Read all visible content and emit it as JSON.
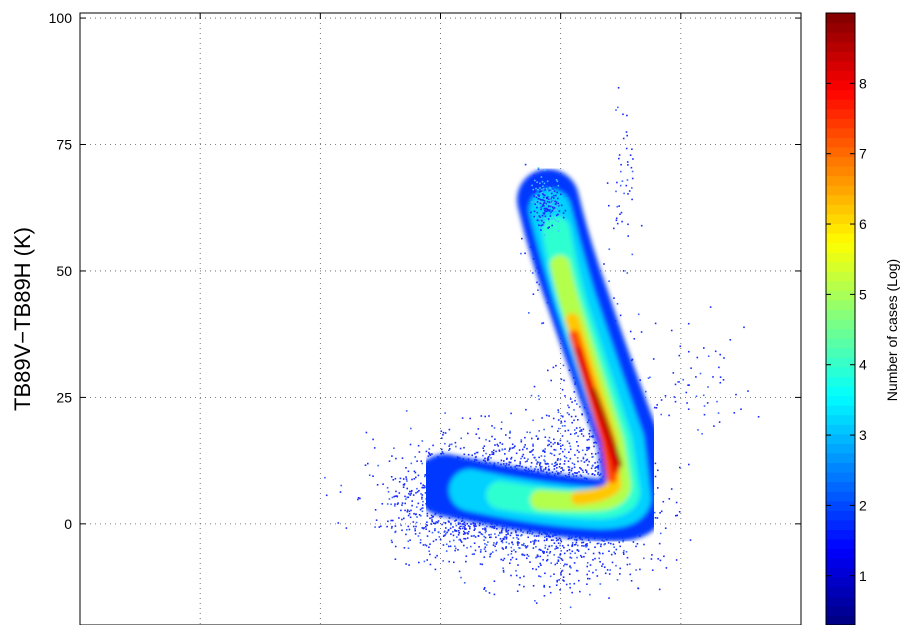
{
  "chart_data": {
    "type": "heatmap",
    "title": "",
    "xlabel": "",
    "ylabel": "TB89V−TB89H (K)",
    "ylim": [
      -20,
      101
    ],
    "yticks": [
      0,
      25,
      50,
      75,
      100
    ],
    "ytick_labels": [
      "0",
      "25",
      "50",
      "75",
      "100"
    ],
    "xgrid_count": 6,
    "grid": "dotted",
    "colormap": "jet",
    "colorbar": {
      "label": "Number of cases (Log)",
      "range": [
        0.3,
        9.0
      ],
      "ticks": [
        1,
        2,
        3,
        4,
        5,
        6,
        7,
        8
      ],
      "tick_labels": [
        "1",
        "2",
        "3",
        "4",
        "5",
        "6",
        "7",
        "8"
      ],
      "levels": 64
    },
    "density_features": [
      {
        "name": "vertical branch peak",
        "y_range": [
          5,
          45
        ],
        "max_log_count": 8.8
      },
      {
        "name": "horizontal low-polarization branch",
        "y_range": [
          -15,
          20
        ],
        "max_log_count": 3.5
      },
      {
        "name": "upper branch tips",
        "y_range": [
          55,
          68
        ],
        "max_log_count": 2.5
      }
    ]
  }
}
